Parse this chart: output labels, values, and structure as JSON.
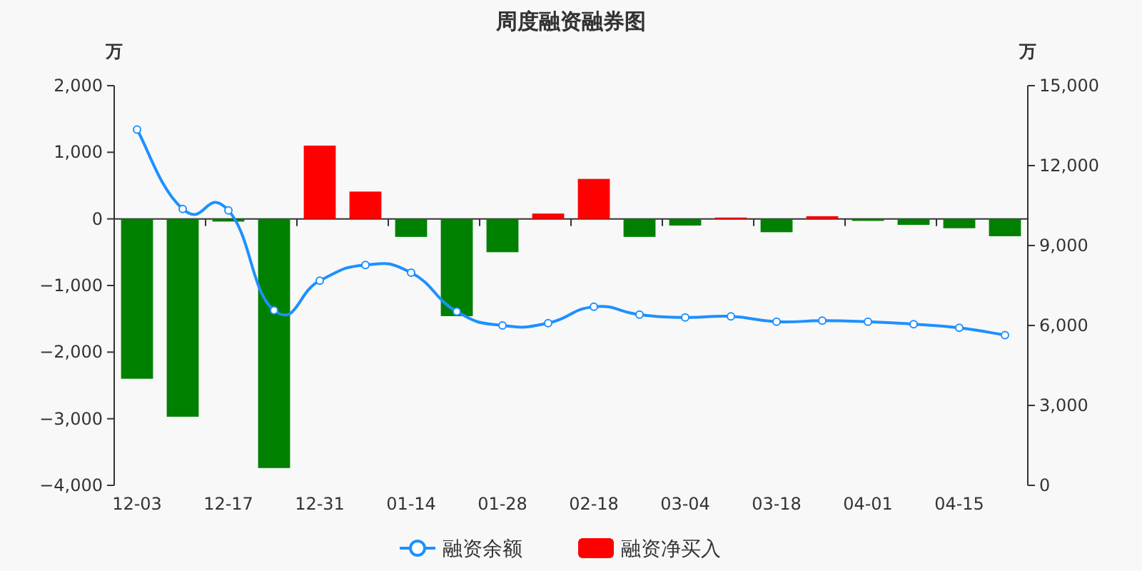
{
  "chart_data": {
    "type": "bar",
    "title": "周度融资融券图",
    "ylabel": "万",
    "y2label": "万",
    "categories": [
      "12-03",
      null,
      "12-17",
      null,
      "12-31",
      null,
      "01-14",
      null,
      "01-28",
      null,
      "02-18",
      null,
      "03-04",
      null,
      "03-18",
      null,
      "04-01",
      null,
      "04-15",
      null
    ],
    "series": [
      {
        "name": "融资余额",
        "type": "line",
        "axis": "y2",
        "color": "#1e90ff",
        "marker": "circle",
        "values": [
          13350,
          10370,
          10320,
          6570,
          7680,
          8270,
          7980,
          6520,
          6000,
          6090,
          6700,
          6410,
          6300,
          6340,
          6140,
          6180,
          6140,
          6050,
          5910,
          5640
        ]
      },
      {
        "name": "融资净买入",
        "color": "#ff0000",
        "values": [
          -2400,
          -2970,
          -40,
          -3740,
          1100,
          410,
          -270,
          -1460,
          -500,
          80,
          600,
          -270,
          -100,
          20,
          -200,
          40,
          -30,
          -90,
          -140,
          -260
        ],
        "colors": [
          "#008000",
          "#008000",
          "#008000",
          "#008000",
          "#ff0000",
          "#ff0000",
          "#008000",
          "#008000",
          "#008000",
          "#ff0000",
          "#ff0000",
          "#008000",
          "#008000",
          "#ff0000",
          "#008000",
          "#ff0000",
          "#008000",
          "#008000",
          "#008000",
          "#008000"
        ]
      }
    ],
    "ylim": [
      -4000,
      2000
    ],
    "yticks": [
      {
        "value": -4000,
        "label": "−4,000"
      },
      {
        "value": -3000,
        "label": "−3,000"
      },
      {
        "value": -2000,
        "label": "−2,000"
      },
      {
        "value": -1000,
        "label": "−1,000"
      },
      0,
      {
        "value": 1000,
        "label": "1,000"
      },
      {
        "value": 2000,
        "label": "2,000"
      }
    ],
    "y2lim": [
      0,
      15000
    ],
    "y2ticks": [
      0,
      {
        "value": 3000,
        "label": "3,000"
      },
      {
        "value": 6000,
        "label": "6,000"
      },
      {
        "value": 9000,
        "label": "9,000"
      },
      {
        "value": 12000,
        "label": "12,000"
      },
      {
        "value": 15000,
        "label": "15,000"
      }
    ],
    "legend": "bottom"
  }
}
